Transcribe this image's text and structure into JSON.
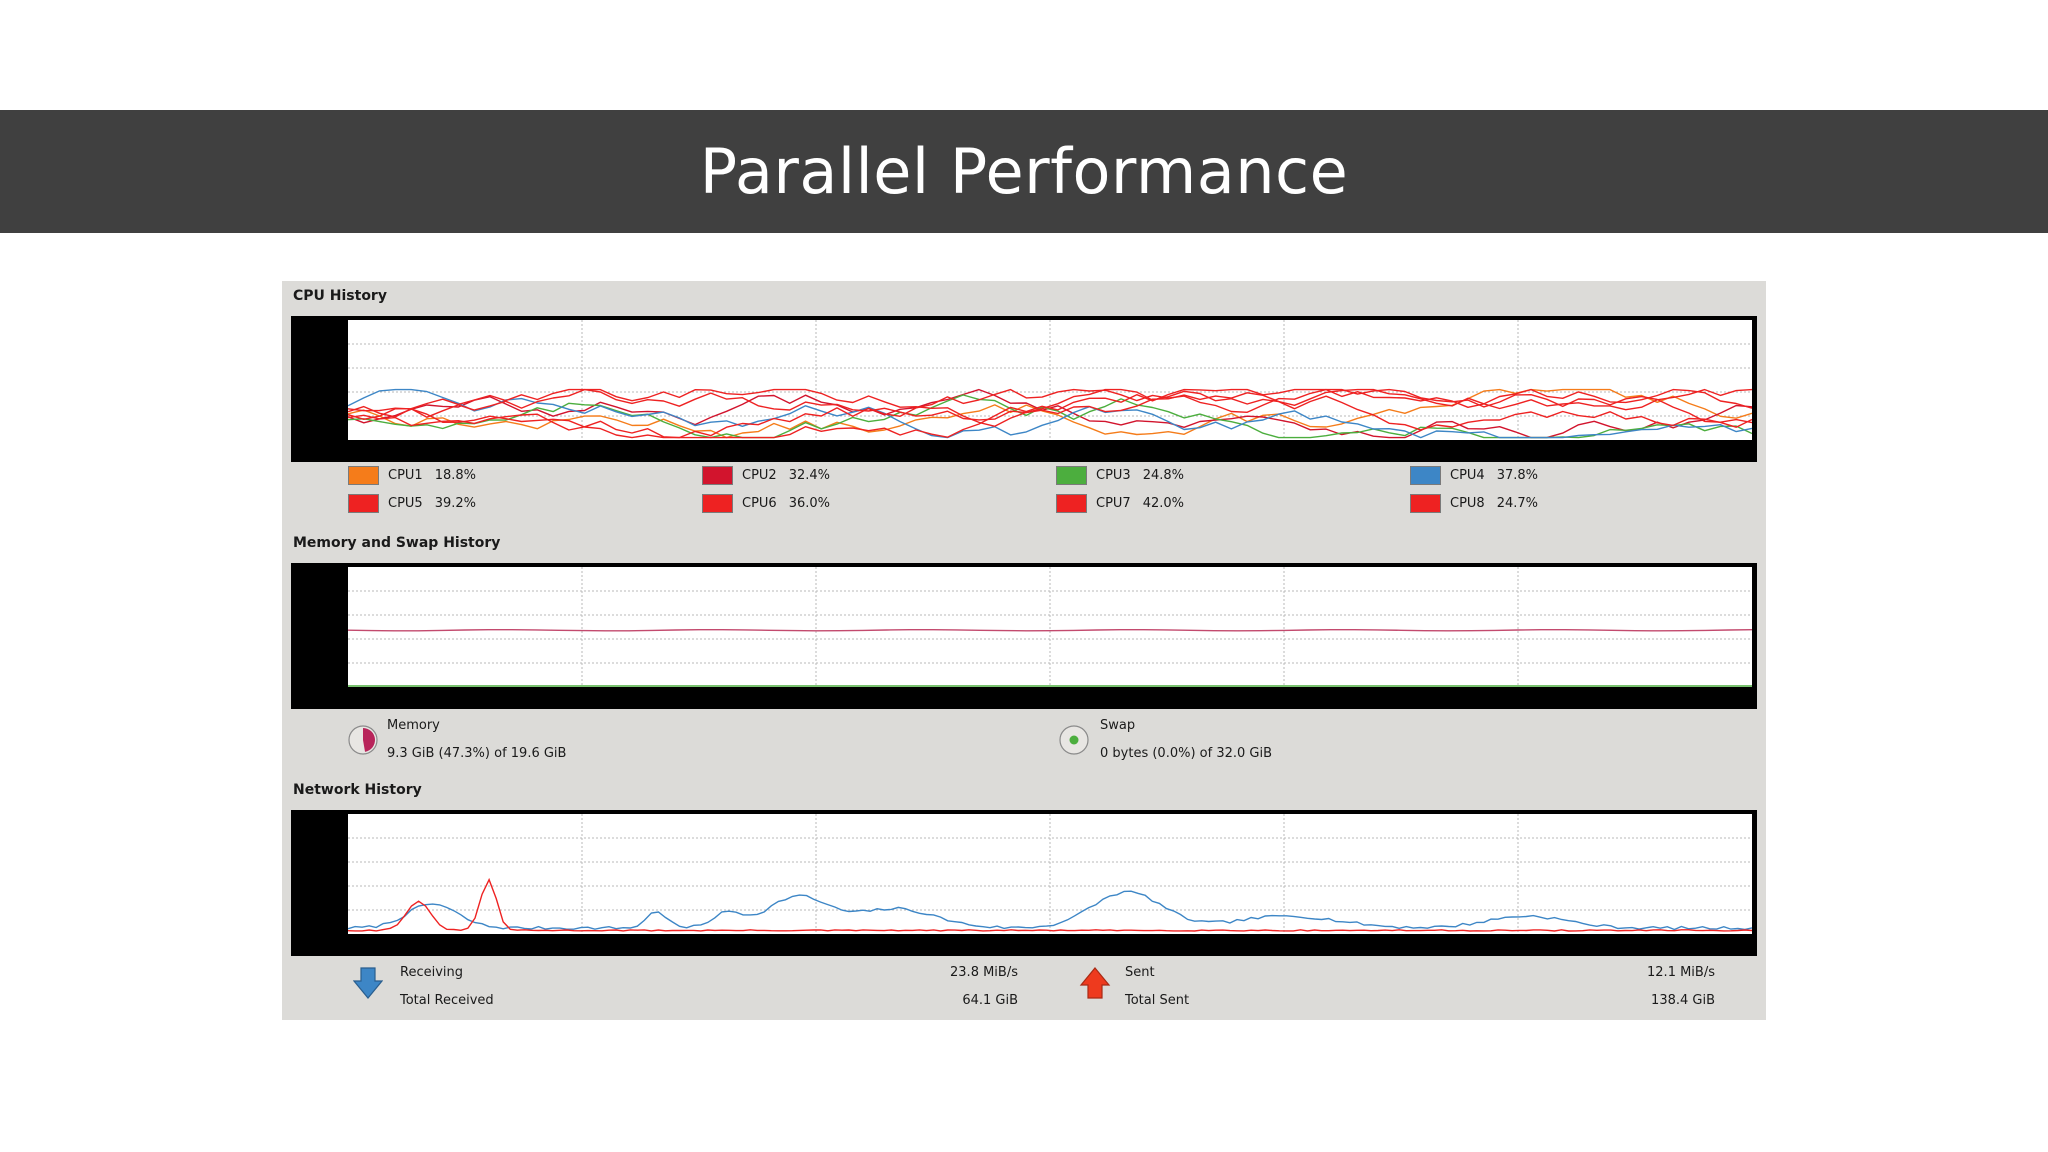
{
  "slide": {
    "title": "Parallel Performance"
  },
  "cpu": {
    "section_title": "CPU History",
    "cores": [
      {
        "label": "CPU1",
        "value": "18.8%",
        "color": "#f57c1a"
      },
      {
        "label": "CPU2",
        "value": "32.4%",
        "color": "#d2142d"
      },
      {
        "label": "CPU3",
        "value": "24.8%",
        "color": "#4cae3e"
      },
      {
        "label": "CPU4",
        "value": "37.8%",
        "color": "#3d86c6"
      },
      {
        "label": "CPU5",
        "value": "39.2%",
        "color": "#ee2222"
      },
      {
        "label": "CPU6",
        "value": "36.0%",
        "color": "#ee2222"
      },
      {
        "label": "CPU7",
        "value": "42.0%",
        "color": "#ee2222"
      },
      {
        "label": "CPU8",
        "value": "24.7%",
        "color": "#ee2222"
      }
    ]
  },
  "memory": {
    "section_title": "Memory and Swap History",
    "memory_label": "Memory",
    "memory_value": "9.3 GiB (47.3%) of 19.6 GiB",
    "memory_fraction": 0.473,
    "memory_color": "#b8245a",
    "swap_label": "Swap",
    "swap_value": "0 bytes (0.0%) of 32.0 GiB",
    "swap_fraction": 0.0,
    "swap_color": "#4cae3e"
  },
  "network": {
    "section_title": "Network History",
    "receiving_label": "Receiving",
    "receiving_rate": "23.8 MiB/s",
    "total_received_label": "Total Received",
    "total_received": "64.1 GiB",
    "sent_label": "Sent",
    "sent_rate": "12.1 MiB/s",
    "total_sent_label": "Total Sent",
    "total_sent": "138.4 GiB",
    "receive_color": "#3d86c6",
    "send_color": "#ee2222"
  },
  "icons": {
    "receive": "arrow-down-icon",
    "send": "arrow-up-icon",
    "memory": "pie-icon",
    "swap": "pie-icon"
  }
}
